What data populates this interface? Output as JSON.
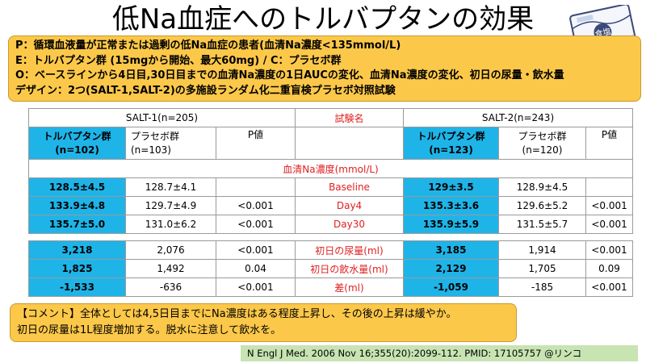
{
  "title": "低Na血症へのトルバプタンの効果",
  "salt_pack_label": "食塩",
  "pico": {
    "p": "P：循環血液量が正常または過剰の低Na血症の患者(血清Na濃度<135mmol/L)",
    "e": "E：トルバプタン群 (15mgから開始、最大60mg) / C：プラセボ群",
    "o": "O：ベースラインから4日目,30日目までの血清Na濃度の1日AUCの変化、血清Na濃度の変化、初日の尿量・飲水量",
    "design": "デザイン：2つ(SALT-1,SALT-2)の多施設ランダム化二重盲検プラセボ対照試験"
  },
  "table": {
    "salt1_header": "SALT-1(n=205)",
    "trial_name_header": "試験名",
    "salt2_header": "SALT-2(n=243)",
    "salt1_tolvaptan": "トルバプタン群\n(n=102)",
    "salt1_placebo": "プラセボ群\n(n=103)",
    "p_value": "P値",
    "salt2_tolvaptan": "トルバプタン群\n(n=123)",
    "salt2_placebo": "プラセボ群\n(n=120)",
    "section_label": "血清Na濃度(mmol/L)",
    "na_rows": [
      {
        "t1": "128.5±4.5",
        "p1": "128.7±4.1",
        "pv1": "",
        "label": "Baseline",
        "t2": "129±3.5",
        "p2": "128.9±4.5",
        "pv2": ""
      },
      {
        "t1": "133.9±4.8",
        "p1": "129.7±4.9",
        "pv1": "<0.001",
        "label": "Day4",
        "t2": "135.3±3.6",
        "p2": "129.6±5.2",
        "pv2": "<0.001"
      },
      {
        "t1": "135.7±5.0",
        "p1": "131.0±6.2",
        "pv1": "<0.001",
        "label": "Day30",
        "t2": "135.9±5.9",
        "p2": "131.5±5.7",
        "pv2": "<0.001"
      }
    ],
    "fluid_rows": [
      {
        "t1": "3,218",
        "p1": "2,076",
        "pv1": "<0.001",
        "label": "初日の尿量(ml)",
        "t2": "3,185",
        "p2": "1,914",
        "pv2": "<0.001"
      },
      {
        "t1": "1,825",
        "p1": "1,492",
        "pv1": "0.04",
        "label": "初日の飲水量(ml)",
        "t2": "2,129",
        "p2": "1,705",
        "pv2": "0.09"
      },
      {
        "t1": "-1,533",
        "p1": "-636",
        "pv1": "<0.001",
        "label": "差(ml)",
        "t2": "-1,059",
        "p2": "-185",
        "pv2": "<0.001"
      }
    ]
  },
  "comment": {
    "line1": "【コメント】全体としては4,5日目までにNa濃度はある程度上昇し、その後の上昇は緩やか。",
    "line2": "初日の尿量は1L程度増加する。脱水に注意して飲水を。"
  },
  "citation": "N Engl J Med. 2006 Nov 16;355(20):2099-112.    PMID: 17105757    @リンコ",
  "colors": {
    "accent_blue": "#1fb4e8",
    "box_orange": "#fcc84a",
    "label_red": "#e02020",
    "citation_green": "#c7e4b2"
  }
}
